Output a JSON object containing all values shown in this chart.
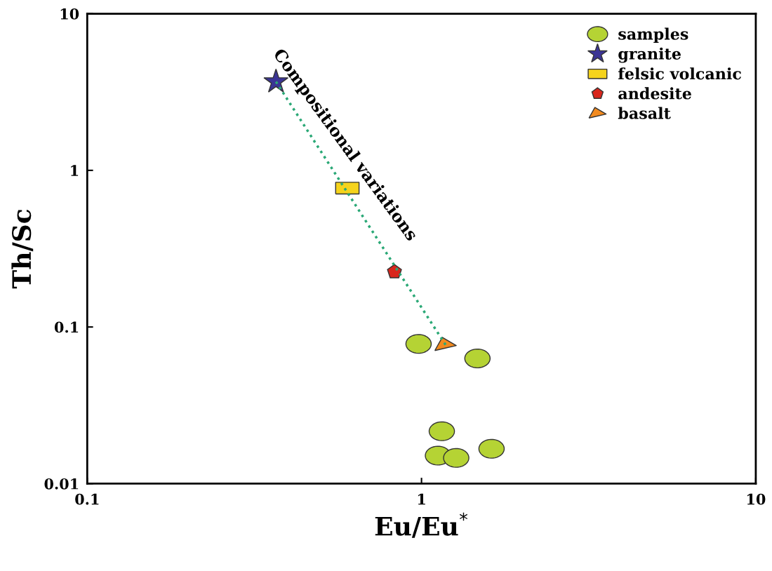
{
  "chart_data": {
    "type": "scatter",
    "xlabel": "Eu/Eu$^{*}$",
    "ylabel": "Th/Sc",
    "log": "xy",
    "xlim": [
      0.1,
      10
    ],
    "xticks": [
      0.1,
      1,
      10
    ],
    "ylim": [
      0.01,
      10
    ],
    "yticks": [
      0.01,
      0.1,
      1,
      10
    ],
    "grid": false,
    "legend": "top right",
    "annotations": [
      "Compositional variations"
    ],
    "series": [
      {
        "type": "line",
        "color": "#2aa876",
        "line_style": "dotted",
        "marker": "none",
        "x": [
          0.367,
          1.18
        ],
        "values": [
          3.68,
          0.077
        ]
      },
      {
        "name": "samples",
        "marker": "circle",
        "color": "#b5d334",
        "x": [
          0.98,
          1.47,
          1.15,
          1.12,
          1.27,
          1.62
        ],
        "values": [
          0.078,
          0.063,
          0.0216,
          0.0151,
          0.0146,
          0.0167
        ]
      },
      {
        "name": "granite",
        "marker": "star",
        "color": "#3b3495",
        "x": [
          0.367
        ],
        "values": [
          3.68
        ]
      },
      {
        "name": "felsic volcanic",
        "marker": "square",
        "color": "#f5d31c",
        "x": [
          0.6
        ],
        "values": [
          0.77
        ]
      },
      {
        "name": "andesite",
        "color": "#d9261c",
        "x": [
          0.83
        ],
        "values": [
          0.225
        ]
      },
      {
        "name": "basalt",
        "marker": "triangle",
        "color": "#f28a1e",
        "x": [
          1.18
        ],
        "values": [
          0.077
        ]
      }
    ]
  }
}
